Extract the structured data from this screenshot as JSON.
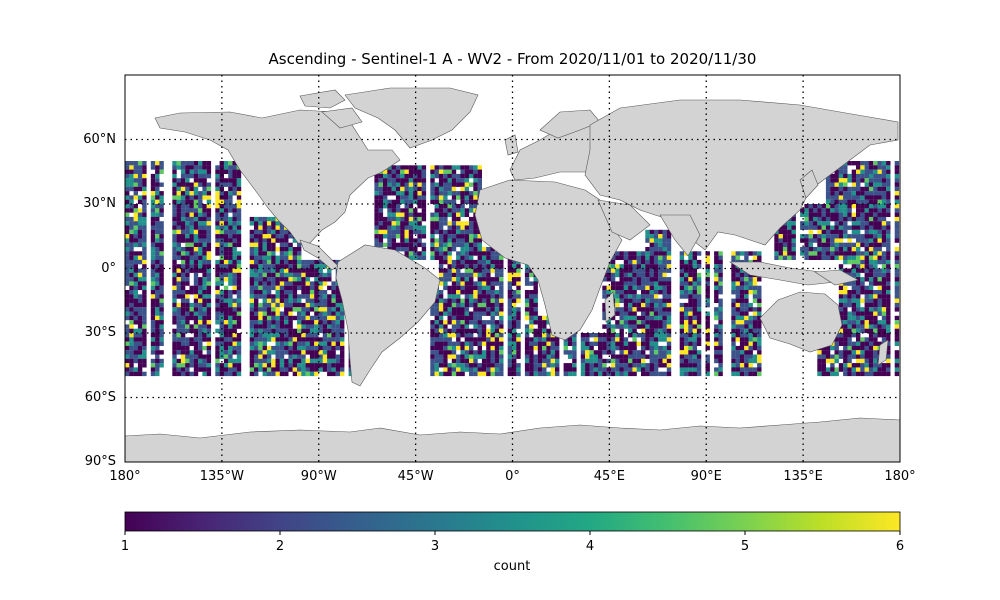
{
  "title": "Ascending - Sentinel-1 A - WV2 - From 2020/11/01 to 2020/11/30",
  "colors": {
    "land": "#d3d3d3",
    "coast": "#555555",
    "grid": "#000000",
    "colormap": "viridis"
  },
  "map": {
    "projection": "equirectangular",
    "lon_range": [
      -180,
      180
    ],
    "lat_range": [
      -90,
      90
    ],
    "swath_lat_range": [
      -50,
      50
    ],
    "lat_ticks": [
      {
        "value": 60,
        "label": "60°N"
      },
      {
        "value": 30,
        "label": "30°N"
      },
      {
        "value": 0,
        "label": "0°"
      },
      {
        "value": -30,
        "label": "30°S"
      },
      {
        "value": -60,
        "label": "60°S"
      },
      {
        "value": -90,
        "label": "90°S"
      }
    ],
    "lon_ticks": [
      {
        "value": -180,
        "label": "180°"
      },
      {
        "value": -135,
        "label": "135°W"
      },
      {
        "value": -90,
        "label": "90°W"
      },
      {
        "value": -45,
        "label": "45°W"
      },
      {
        "value": 0,
        "label": "0°"
      },
      {
        "value": 45,
        "label": "45°E"
      },
      {
        "value": 90,
        "label": "90°E"
      },
      {
        "value": 135,
        "label": "135°E"
      },
      {
        "value": 180,
        "label": "180°"
      }
    ]
  },
  "colorbar": {
    "label": "count",
    "min": 1,
    "max": 6,
    "ticks": [
      "1",
      "2",
      "3",
      "4",
      "5",
      "6"
    ]
  }
}
